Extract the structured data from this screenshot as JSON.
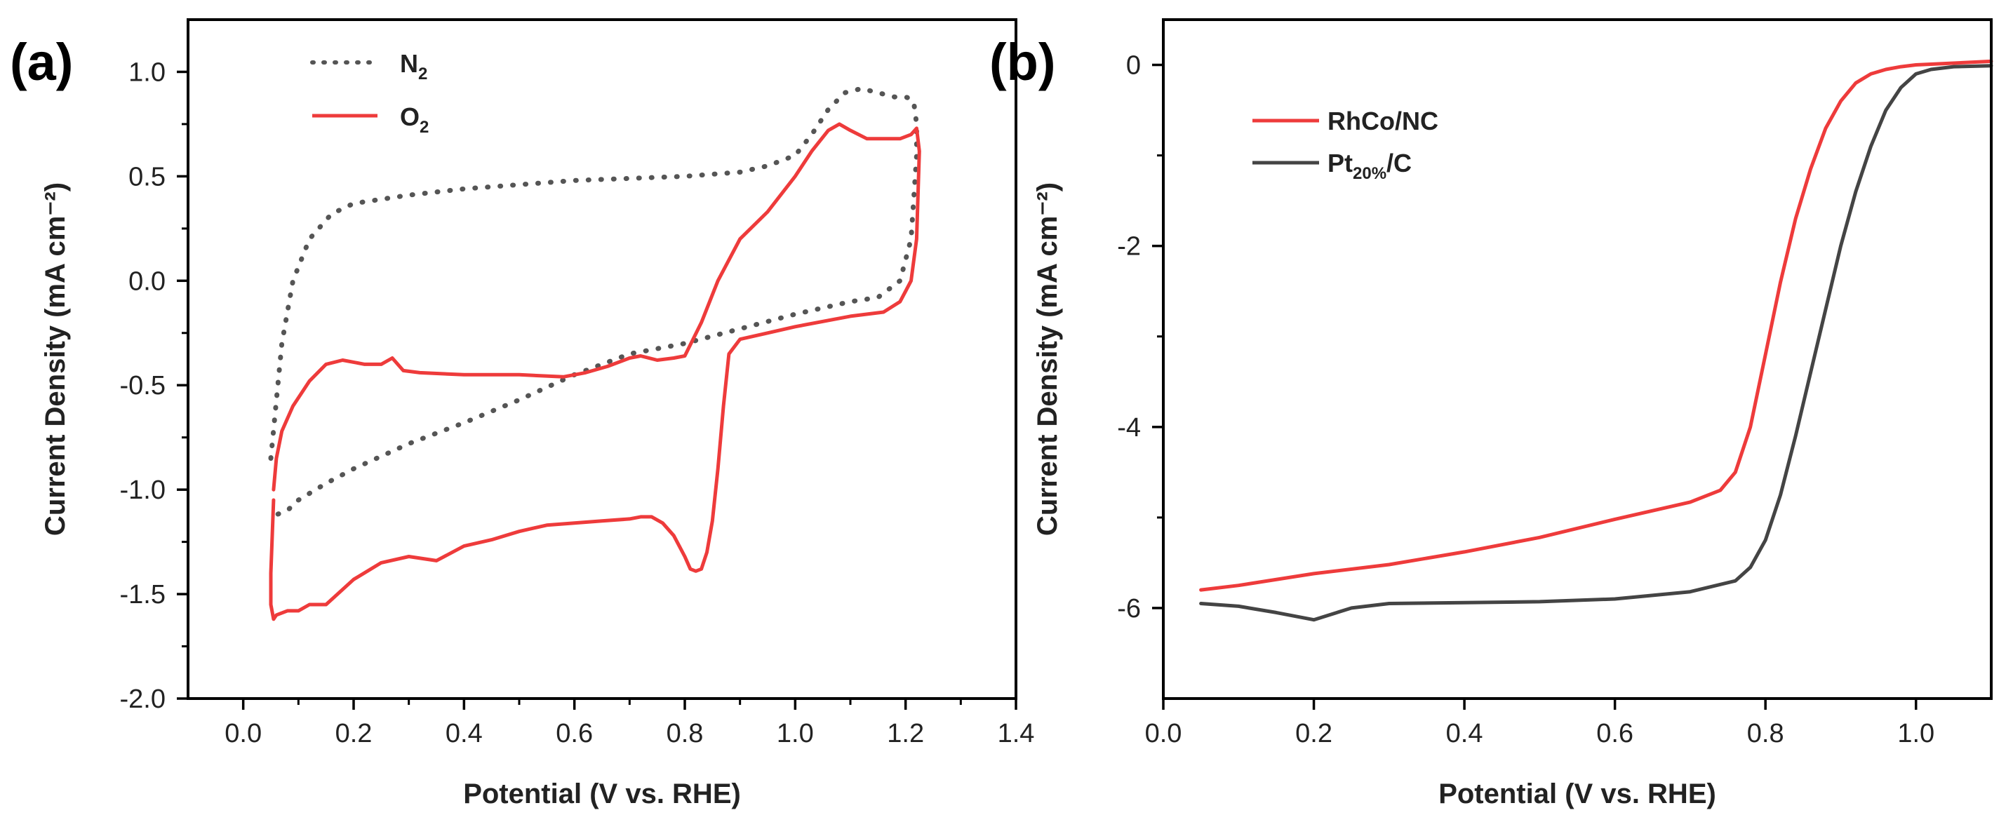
{
  "chart_data": [
    {
      "panel_label": "(a)",
      "type": "line",
      "xlabel": "Potential (V vs. RHE)",
      "ylabel": "Current Density (mA cm⁻²)",
      "xlim": [
        -0.1,
        1.4
      ],
      "ylim": [
        -2.0,
        1.25
      ],
      "xticks": [
        0.0,
        0.2,
        0.4,
        0.6,
        0.8,
        1.0,
        1.2,
        1.4
      ],
      "xtick_labels": [
        "0.0",
        "0.2",
        "0.4",
        "0.6",
        "0.8",
        "1.0",
        "1.2",
        "1.4"
      ],
      "yticks": [
        1.0,
        0.5,
        0.0,
        -0.5,
        -1.0,
        -1.5,
        -2.0
      ],
      "ytick_labels": [
        "1.0",
        "0.5",
        "0.0",
        "-0.5",
        "-1.0",
        "-1.5",
        "-2.0"
      ],
      "legend_position": "top-left",
      "series": [
        {
          "name": "N2",
          "legend_main": "N",
          "legend_sub": "2",
          "color": "#555555",
          "style": "dotted",
          "x": [
            0.05,
            0.07,
            0.09,
            0.12,
            0.16,
            0.2,
            0.3,
            0.4,
            0.5,
            0.6,
            0.7,
            0.8,
            0.9,
            0.95,
            1.0,
            1.03,
            1.06,
            1.09,
            1.12,
            1.15,
            1.18,
            1.2,
            1.21,
            1.215,
            1.22,
            1.22,
            1.21,
            1.19,
            1.15,
            1.1,
            1.0,
            0.9,
            0.8,
            0.7,
            0.6,
            0.5,
            0.4,
            0.3,
            0.2,
            0.15,
            0.1,
            0.08,
            0.06
          ],
          "y": [
            -0.85,
            -0.3,
            0.0,
            0.2,
            0.32,
            0.37,
            0.41,
            0.44,
            0.46,
            0.48,
            0.49,
            0.5,
            0.52,
            0.55,
            0.6,
            0.7,
            0.82,
            0.9,
            0.92,
            0.9,
            0.88,
            0.88,
            0.87,
            0.85,
            0.75,
            0.6,
            0.2,
            0.0,
            -0.08,
            -0.1,
            -0.16,
            -0.23,
            -0.3,
            -0.35,
            -0.45,
            -0.57,
            -0.68,
            -0.78,
            -0.9,
            -0.97,
            -1.05,
            -1.1,
            -1.12
          ]
        },
        {
          "name": "O2",
          "legend_main": "O",
          "legend_sub": "2",
          "color": "#ee3b3b",
          "style": "solid",
          "x": [
            0.055,
            0.06,
            0.07,
            0.09,
            0.12,
            0.15,
            0.18,
            0.22,
            0.25,
            0.27,
            0.29,
            0.32,
            0.4,
            0.5,
            0.58,
            0.62,
            0.66,
            0.7,
            0.72,
            0.75,
            0.78,
            0.8,
            0.83,
            0.86,
            0.9,
            0.95,
            1.0,
            1.03,
            1.06,
            1.08,
            1.1,
            1.13,
            1.16,
            1.19,
            1.21,
            1.22,
            1.225,
            1.22,
            1.21,
            1.2,
            1.19,
            1.16,
            1.1,
            1.0,
            0.95,
            0.9,
            0.88,
            0.87,
            0.86,
            0.85,
            0.84,
            0.83,
            0.82,
            0.81,
            0.8,
            0.78,
            0.76,
            0.74,
            0.72,
            0.7,
            0.65,
            0.6,
            0.55,
            0.5,
            0.45,
            0.4,
            0.35,
            0.3,
            0.25,
            0.2,
            0.15,
            0.12,
            0.1,
            0.08,
            0.06,
            0.055,
            0.05,
            0.05,
            0.055
          ],
          "y": [
            -1.0,
            -0.85,
            -0.72,
            -0.6,
            -0.48,
            -0.4,
            -0.38,
            -0.4,
            -0.4,
            -0.37,
            -0.43,
            -0.44,
            -0.45,
            -0.45,
            -0.46,
            -0.44,
            -0.41,
            -0.37,
            -0.36,
            -0.38,
            -0.37,
            -0.36,
            -0.2,
            0.0,
            0.2,
            0.33,
            0.5,
            0.62,
            0.72,
            0.75,
            0.72,
            0.68,
            0.68,
            0.68,
            0.7,
            0.73,
            0.62,
            0.2,
            0.0,
            -0.05,
            -0.1,
            -0.15,
            -0.17,
            -0.22,
            -0.25,
            -0.28,
            -0.35,
            -0.6,
            -0.9,
            -1.15,
            -1.3,
            -1.38,
            -1.39,
            -1.38,
            -1.32,
            -1.22,
            -1.16,
            -1.13,
            -1.13,
            -1.14,
            -1.15,
            -1.16,
            -1.17,
            -1.2,
            -1.24,
            -1.27,
            -1.34,
            -1.32,
            -1.35,
            -1.43,
            -1.55,
            -1.55,
            -1.58,
            -1.58,
            -1.6,
            -1.62,
            -1.55,
            -1.4,
            -1.05
          ]
        }
      ]
    },
    {
      "panel_label": "(b)",
      "type": "line",
      "xlabel": "Potential (V vs. RHE)",
      "ylabel": "Current Density (mA cm⁻²)",
      "xlim": [
        0.0,
        1.1
      ],
      "ylim": [
        -7.0,
        0.5
      ],
      "xticks": [
        0.0,
        0.2,
        0.4,
        0.6,
        0.8,
        1.0
      ],
      "xtick_labels": [
        "0.0",
        "0.2",
        "0.4",
        "0.6",
        "0.8",
        "1.0"
      ],
      "yticks": [
        0,
        -2,
        -4,
        -6
      ],
      "ytick_labels": [
        "0",
        "-2",
        "-4",
        "-6"
      ],
      "legend_position": "top-left",
      "series": [
        {
          "name": "RhCo/NC",
          "legend_main": "RhCo/NC",
          "color": "#ee3b3b",
          "style": "solid",
          "x": [
            0.05,
            0.1,
            0.2,
            0.3,
            0.4,
            0.5,
            0.6,
            0.7,
            0.74,
            0.76,
            0.78,
            0.8,
            0.82,
            0.84,
            0.86,
            0.88,
            0.9,
            0.92,
            0.94,
            0.96,
            0.98,
            1.0,
            1.05,
            1.1
          ],
          "y": [
            -5.8,
            -5.75,
            -5.62,
            -5.52,
            -5.38,
            -5.22,
            -5.02,
            -4.83,
            -4.7,
            -4.5,
            -4.0,
            -3.2,
            -2.4,
            -1.7,
            -1.15,
            -0.7,
            -0.4,
            -0.2,
            -0.1,
            -0.05,
            -0.02,
            0.0,
            0.02,
            0.04
          ]
        },
        {
          "name": "Pt20%/C",
          "legend_main": "Pt",
          "legend_sub": "20%",
          "legend_tail": "/C",
          "color": "#444444",
          "style": "solid",
          "x": [
            0.05,
            0.1,
            0.15,
            0.2,
            0.25,
            0.3,
            0.4,
            0.5,
            0.6,
            0.7,
            0.76,
            0.78,
            0.8,
            0.82,
            0.84,
            0.86,
            0.88,
            0.9,
            0.92,
            0.94,
            0.96,
            0.98,
            1.0,
            1.02,
            1.05,
            1.1
          ],
          "y": [
            -5.95,
            -5.98,
            -6.05,
            -6.13,
            -6.0,
            -5.95,
            -5.94,
            -5.93,
            -5.9,
            -5.82,
            -5.7,
            -5.55,
            -5.25,
            -4.75,
            -4.1,
            -3.4,
            -2.7,
            -2.0,
            -1.4,
            -0.9,
            -0.5,
            -0.25,
            -0.1,
            -0.05,
            -0.02,
            -0.01
          ]
        }
      ]
    }
  ]
}
